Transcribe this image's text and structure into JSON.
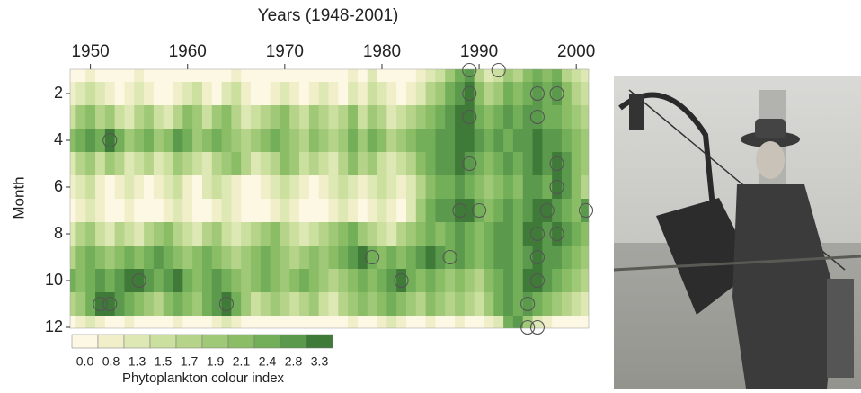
{
  "chart_data": {
    "type": "heatmap",
    "x_label": "Years (1948-2001)",
    "y_label": "Month",
    "x": [
      1948,
      1949,
      1950,
      1951,
      1952,
      1953,
      1954,
      1955,
      1956,
      1957,
      1958,
      1959,
      1960,
      1961,
      1962,
      1963,
      1964,
      1965,
      1966,
      1967,
      1968,
      1969,
      1970,
      1971,
      1972,
      1973,
      1974,
      1975,
      1976,
      1977,
      1978,
      1979,
      1980,
      1981,
      1982,
      1983,
      1984,
      1985,
      1986,
      1987,
      1988,
      1989,
      1990,
      1991,
      1992,
      1993,
      1994,
      1995,
      1996,
      1997,
      1998,
      1999,
      2000,
      2001
    ],
    "y": [
      1,
      2,
      3,
      4,
      5,
      6,
      7,
      8,
      9,
      10,
      11,
      12
    ],
    "z": [
      [
        0.5,
        0.3,
        0.8,
        0.6,
        0.4,
        0.3,
        0.5,
        0.8,
        0.6,
        0.3,
        0.2,
        0.4,
        0.7,
        0.5,
        0.3,
        0.4,
        0.6,
        0.8,
        0.5,
        0.3,
        0.2,
        0.4,
        0.6,
        0.3,
        0.2,
        0.4,
        0.5,
        0.3,
        0.6,
        0.8,
        0.5,
        1.3,
        0.7,
        0.5,
        0.4,
        0.6,
        0.8,
        1.3,
        1.5,
        1.9,
        2.4,
        2.8,
        1.7,
        1.3,
        1.5,
        1.9,
        1.7,
        2.1,
        2.4,
        2.1,
        2.4,
        1.7,
        1.5,
        1.3
      ],
      [
        0.8,
        1.3,
        1.5,
        1.3,
        0.8,
        0.5,
        0.8,
        1.3,
        0.8,
        0.5,
        0.4,
        0.8,
        1.3,
        1.5,
        0.8,
        0.6,
        1.3,
        1.5,
        0.8,
        0.5,
        0.4,
        0.8,
        1.3,
        0.8,
        0.5,
        0.8,
        1.3,
        0.8,
        0.6,
        1.3,
        0.8,
        1.5,
        1.3,
        0.8,
        0.6,
        0.8,
        1.3,
        1.7,
        1.9,
        2.4,
        2.8,
        3.3,
        2.1,
        1.7,
        1.9,
        2.4,
        2.1,
        2.4,
        2.8,
        2.4,
        2.8,
        2.1,
        1.7,
        1.5
      ],
      [
        1.5,
        1.9,
        2.1,
        1.7,
        1.9,
        1.5,
        1.3,
        1.7,
        1.9,
        1.5,
        1.3,
        1.7,
        2.1,
        1.9,
        1.5,
        1.9,
        2.1,
        1.7,
        1.3,
        1.5,
        1.7,
        1.9,
        2.1,
        1.7,
        1.5,
        1.9,
        1.7,
        1.5,
        1.7,
        2.1,
        1.5,
        1.9,
        1.7,
        1.3,
        1.5,
        1.7,
        1.9,
        2.1,
        2.4,
        2.8,
        3.3,
        3.3,
        2.4,
        2.1,
        2.4,
        2.8,
        2.4,
        2.8,
        2.8,
        2.4,
        2.4,
        2.1,
        1.9,
        1.7
      ],
      [
        2.1,
        2.4,
        2.8,
        2.4,
        3.3,
        2.4,
        1.9,
        2.1,
        2.4,
        1.9,
        2.1,
        2.8,
        2.4,
        1.9,
        2.1,
        2.4,
        2.1,
        1.9,
        1.7,
        1.9,
        2.1,
        2.4,
        2.1,
        1.9,
        1.7,
        2.1,
        1.9,
        1.7,
        1.9,
        2.4,
        1.9,
        2.4,
        2.1,
        1.7,
        1.9,
        2.1,
        2.4,
        2.4,
        2.8,
        2.8,
        3.3,
        3.3,
        2.8,
        2.4,
        2.8,
        2.4,
        2.8,
        2.8,
        3.3,
        2.8,
        2.8,
        2.4,
        2.1,
        1.9
      ],
      [
        1.3,
        1.7,
        1.9,
        1.5,
        1.9,
        1.7,
        1.3,
        1.5,
        1.7,
        1.3,
        1.5,
        1.9,
        1.7,
        1.5,
        1.3,
        1.7,
        1.9,
        2.1,
        1.7,
        1.3,
        1.5,
        1.7,
        2.1,
        1.9,
        1.5,
        1.7,
        1.5,
        1.3,
        1.7,
        2.1,
        1.7,
        1.9,
        1.5,
        1.3,
        1.5,
        1.7,
        2.1,
        2.4,
        2.8,
        2.8,
        3.3,
        2.8,
        2.4,
        2.1,
        2.4,
        2.8,
        2.4,
        2.8,
        3.3,
        2.8,
        3.3,
        2.8,
        2.1,
        1.9
      ],
      [
        0.8,
        1.3,
        1.5,
        0.8,
        0.6,
        0.8,
        1.3,
        0.8,
        0.5,
        0.8,
        1.3,
        1.5,
        0.8,
        0.6,
        1.3,
        1.5,
        1.3,
        0.8,
        0.6,
        0.5,
        0.8,
        1.3,
        1.5,
        1.3,
        0.8,
        0.6,
        0.8,
        1.3,
        1.5,
        1.3,
        0.8,
        1.3,
        1.5,
        1.3,
        0.8,
        1.3,
        1.7,
        2.1,
        2.4,
        2.4,
        2.8,
        2.4,
        2.1,
        1.9,
        2.1,
        2.4,
        2.1,
        2.8,
        2.8,
        2.4,
        3.3,
        2.8,
        2.1,
        1.7
      ],
      [
        0.5,
        0.8,
        1.3,
        0.8,
        0.5,
        0.4,
        0.8,
        0.5,
        0.4,
        0.6,
        0.8,
        1.3,
        0.8,
        0.5,
        0.6,
        0.8,
        1.3,
        0.8,
        0.5,
        0.4,
        0.6,
        0.8,
        1.3,
        0.8,
        0.5,
        0.4,
        0.6,
        0.8,
        1.3,
        0.8,
        0.6,
        0.8,
        1.3,
        0.8,
        0.6,
        1.3,
        1.9,
        2.4,
        2.8,
        2.8,
        3.3,
        3.3,
        2.4,
        2.1,
        2.4,
        2.8,
        2.4,
        2.8,
        3.3,
        3.3,
        2.8,
        2.4,
        2.1,
        2.8
      ],
      [
        1.3,
        1.7,
        1.9,
        1.5,
        1.3,
        1.7,
        1.5,
        1.3,
        1.7,
        1.9,
        2.1,
        1.7,
        1.5,
        1.3,
        1.7,
        1.9,
        1.5,
        1.3,
        1.5,
        1.7,
        1.9,
        2.1,
        1.7,
        1.5,
        1.3,
        1.5,
        1.7,
        1.9,
        2.1,
        2.4,
        1.9,
        1.7,
        1.5,
        1.3,
        1.7,
        1.9,
        2.1,
        2.4,
        2.1,
        2.4,
        2.8,
        2.4,
        2.1,
        2.4,
        2.8,
        2.8,
        2.4,
        3.3,
        3.3,
        2.8,
        3.3,
        2.8,
        2.4,
        2.1
      ],
      [
        1.7,
        2.1,
        2.4,
        2.1,
        1.9,
        2.1,
        2.4,
        2.1,
        2.4,
        2.8,
        2.4,
        2.1,
        1.9,
        2.1,
        2.4,
        2.1,
        1.9,
        1.7,
        1.9,
        2.1,
        2.4,
        2.1,
        1.9,
        1.7,
        1.9,
        2.1,
        1.9,
        2.1,
        2.4,
        2.8,
        3.3,
        2.4,
        2.1,
        2.4,
        2.1,
        2.4,
        2.8,
        3.3,
        2.8,
        2.4,
        2.8,
        2.4,
        2.1,
        2.4,
        2.8,
        2.8,
        2.4,
        2.8,
        3.3,
        2.8,
        2.8,
        2.4,
        2.1,
        1.9
      ],
      [
        2.4,
        2.1,
        2.4,
        2.8,
        2.4,
        2.8,
        3.3,
        3.3,
        2.8,
        2.4,
        2.8,
        3.3,
        2.4,
        2.1,
        2.4,
        2.8,
        2.4,
        2.1,
        1.9,
        2.1,
        2.4,
        2.1,
        1.9,
        2.1,
        2.4,
        2.1,
        1.9,
        1.7,
        1.9,
        2.1,
        2.4,
        2.1,
        2.4,
        2.8,
        3.3,
        2.4,
        2.1,
        2.4,
        2.1,
        1.9,
        2.1,
        1.9,
        1.7,
        2.1,
        2.4,
        2.8,
        2.4,
        3.3,
        3.3,
        2.8,
        2.4,
        2.1,
        1.9,
        1.7
      ],
      [
        1.7,
        1.9,
        2.4,
        3.3,
        3.3,
        2.8,
        2.4,
        2.1,
        1.9,
        1.7,
        2.1,
        2.4,
        2.1,
        1.9,
        2.4,
        2.8,
        3.3,
        2.4,
        1.9,
        1.5,
        1.7,
        1.9,
        1.7,
        1.5,
        1.7,
        1.9,
        1.5,
        1.3,
        1.7,
        1.9,
        2.1,
        1.9,
        2.1,
        2.4,
        2.1,
        1.9,
        1.7,
        2.1,
        1.9,
        1.7,
        1.9,
        1.7,
        1.5,
        1.9,
        2.4,
        2.8,
        2.4,
        2.8,
        2.4,
        2.1,
        1.9,
        1.7,
        1.5,
        1.3
      ],
      [
        0.5,
        0.8,
        1.3,
        0.8,
        0.5,
        0.4,
        0.8,
        0.6,
        0.4,
        0.3,
        0.5,
        0.8,
        0.6,
        0.4,
        0.5,
        0.8,
        1.3,
        0.8,
        0.5,
        0.3,
        0.4,
        0.6,
        0.5,
        0.3,
        0.4,
        0.6,
        0.4,
        0.3,
        0.5,
        0.8,
        0.6,
        0.5,
        0.8,
        1.3,
        0.8,
        0.6,
        0.5,
        0.8,
        0.6,
        0.5,
        0.8,
        0.6,
        0.5,
        0.8,
        1.3,
        2.4,
        2.8,
        1.9,
        1.3,
        0.8,
        0.6,
        0.5,
        0.4,
        0.3
      ]
    ],
    "xlim": [
      1948,
      2001
    ],
    "ylim": [
      1,
      12
    ],
    "y_reversed": true,
    "xticks": [
      1950,
      1960,
      1970,
      1980,
      1990,
      2000
    ],
    "yticks": [
      2,
      4,
      6,
      8,
      10,
      12
    ],
    "colorbar": {
      "label": "Phytoplankton colour index",
      "levels": [
        {
          "value": 0,
          "label": "0.0"
        },
        0.8,
        1.3,
        1.5,
        1.7,
        1.9,
        2.1,
        2.4,
        2.8,
        3.3
      ],
      "colors": [
        "#fdf8e4",
        "#f0efc9",
        "#dde8b4",
        "#cbdf9e",
        "#b6d489",
        "#a0c977",
        "#8abd66",
        "#73ae59",
        "#5b9a4c",
        "#3f7a38"
      ]
    },
    "markers": {
      "x": [
        1952,
        1951,
        1952,
        1955,
        1964,
        1979,
        1982,
        1987,
        1988,
        1989,
        1989,
        1989,
        1989,
        1990,
        1992,
        1995,
        1995,
        1996,
        1996,
        1996,
        1996,
        1996,
        1996,
        1997,
        1998,
        1998,
        1998,
        1998,
        2001
      ],
      "y": [
        4,
        11,
        11,
        10,
        11,
        9,
        10,
        9,
        7,
        1,
        2,
        3,
        5,
        7,
        1,
        11,
        12,
        12,
        2,
        3,
        8,
        9,
        10,
        7,
        2,
        5,
        6,
        8,
        7
      ],
      "color": "#555555"
    }
  }
}
